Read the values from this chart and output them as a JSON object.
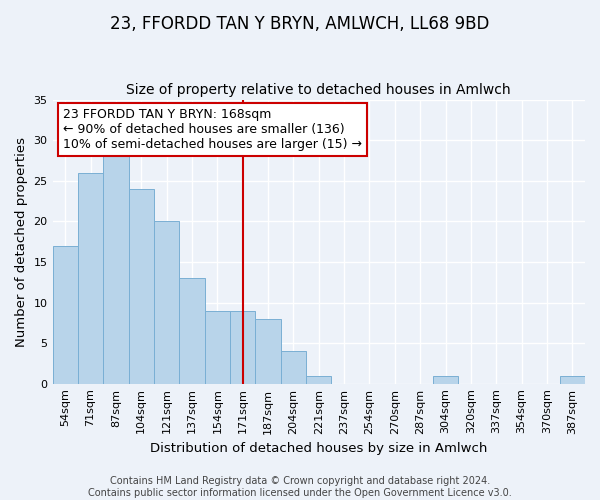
{
  "title": "23, FFORDD TAN Y BRYN, AMLWCH, LL68 9BD",
  "subtitle": "Size of property relative to detached houses in Amlwch",
  "xlabel": "Distribution of detached houses by size in Amlwch",
  "ylabel": "Number of detached properties",
  "bar_labels": [
    "54sqm",
    "71sqm",
    "87sqm",
    "104sqm",
    "121sqm",
    "137sqm",
    "154sqm",
    "171sqm",
    "187sqm",
    "204sqm",
    "221sqm",
    "237sqm",
    "254sqm",
    "270sqm",
    "287sqm",
    "304sqm",
    "320sqm",
    "337sqm",
    "354sqm",
    "370sqm",
    "387sqm"
  ],
  "bar_values": [
    17,
    26,
    28,
    24,
    20,
    13,
    9,
    9,
    8,
    4,
    1,
    0,
    0,
    0,
    0,
    1,
    0,
    0,
    0,
    0,
    1
  ],
  "bar_color": "#b8d4ea",
  "bar_edge_color": "#7aafd4",
  "vline_idx": 7,
  "vline_color": "#cc0000",
  "ann_line1": "23 FFORDD TAN Y BRYN: 168sqm",
  "ann_line2": "← 90% of detached houses are smaller (136)",
  "ann_line3": "10% of semi-detached houses are larger (15) →",
  "annotation_box_edge_color": "#cc0000",
  "annotation_box_fill": "#ffffff",
  "ylim": [
    0,
    35
  ],
  "yticks": [
    0,
    5,
    10,
    15,
    20,
    25,
    30,
    35
  ],
  "footer_line1": "Contains HM Land Registry data © Crown copyright and database right 2024.",
  "footer_line2": "Contains public sector information licensed under the Open Government Licence v3.0.",
  "title_fontsize": 12,
  "subtitle_fontsize": 10,
  "axis_label_fontsize": 9.5,
  "tick_fontsize": 8,
  "annotation_fontsize": 9,
  "footer_fontsize": 7,
  "bg_color": "#edf2f9"
}
